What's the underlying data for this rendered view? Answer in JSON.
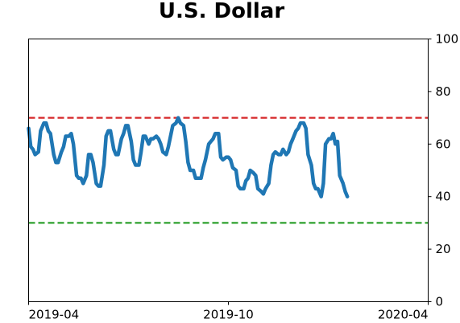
{
  "chart_data": {
    "type": "line",
    "title": "U.S. Dollar",
    "xlabel": "",
    "ylabel": "",
    "x_range": [
      "2019-04-01",
      "2020-04-01"
    ],
    "ylim": [
      0,
      100
    ],
    "x_ticks": [
      {
        "date": "2019-04-01",
        "label": "2019-04"
      },
      {
        "date": "2019-10-01",
        "label": "2019-10"
      },
      {
        "date": "2020-04-01",
        "label": "2020-04"
      }
    ],
    "y_ticks": [
      0,
      20,
      40,
      60,
      80,
      100
    ],
    "y_axis_side": "right",
    "grid": false,
    "reference_lines": [
      {
        "y": 70,
        "color": "#d62728",
        "style": "dashed"
      },
      {
        "y": 30,
        "color": "#2ca02c",
        "style": "dashed"
      }
    ],
    "series": [
      {
        "color": "#1f77b4",
        "points": [
          [
            "2019-04-01",
            66
          ],
          [
            "2019-04-03",
            59
          ],
          [
            "2019-04-05",
            58
          ],
          [
            "2019-04-07",
            56
          ],
          [
            "2019-04-10",
            57
          ],
          [
            "2019-04-12",
            65
          ],
          [
            "2019-04-15",
            68
          ],
          [
            "2019-04-17",
            68
          ],
          [
            "2019-04-19",
            65
          ],
          [
            "2019-04-21",
            64
          ],
          [
            "2019-04-24",
            56
          ],
          [
            "2019-04-26",
            53
          ],
          [
            "2019-04-28",
            53
          ],
          [
            "2019-05-01",
            57
          ],
          [
            "2019-05-03",
            59
          ],
          [
            "2019-05-05",
            63
          ],
          [
            "2019-05-08",
            63
          ],
          [
            "2019-05-10",
            64
          ],
          [
            "2019-05-12",
            60
          ],
          [
            "2019-05-15",
            48
          ],
          [
            "2019-05-17",
            47
          ],
          [
            "2019-05-19",
            47
          ],
          [
            "2019-05-21",
            45
          ],
          [
            "2019-05-24",
            48
          ],
          [
            "2019-05-26",
            56
          ],
          [
            "2019-05-28",
            56
          ],
          [
            "2019-05-30",
            53
          ],
          [
            "2019-06-02",
            45
          ],
          [
            "2019-06-04",
            44
          ],
          [
            "2019-06-06",
            44
          ],
          [
            "2019-06-09",
            52
          ],
          [
            "2019-06-11",
            63
          ],
          [
            "2019-06-13",
            65
          ],
          [
            "2019-06-15",
            65
          ],
          [
            "2019-06-18",
            58
          ],
          [
            "2019-06-20",
            56
          ],
          [
            "2019-06-22",
            56
          ],
          [
            "2019-06-25",
            62
          ],
          [
            "2019-06-27",
            64
          ],
          [
            "2019-06-29",
            67
          ],
          [
            "2019-07-01",
            67
          ],
          [
            "2019-07-04",
            61
          ],
          [
            "2019-07-06",
            54
          ],
          [
            "2019-07-08",
            52
          ],
          [
            "2019-07-11",
            52
          ],
          [
            "2019-07-13",
            57
          ],
          [
            "2019-07-15",
            63
          ],
          [
            "2019-07-17",
            63
          ],
          [
            "2019-07-20",
            60
          ],
          [
            "2019-07-22",
            62
          ],
          [
            "2019-07-24",
            62
          ],
          [
            "2019-07-27",
            63
          ],
          [
            "2019-07-29",
            62
          ],
          [
            "2019-07-31",
            60
          ],
          [
            "2019-08-02",
            57
          ],
          [
            "2019-08-05",
            56
          ],
          [
            "2019-08-07",
            59
          ],
          [
            "2019-08-09",
            63
          ],
          [
            "2019-08-11",
            67
          ],
          [
            "2019-08-14",
            68
          ],
          [
            "2019-08-16",
            70
          ],
          [
            "2019-08-18",
            68
          ],
          [
            "2019-08-21",
            67
          ],
          [
            "2019-08-23",
            61
          ],
          [
            "2019-08-25",
            53
          ],
          [
            "2019-08-27",
            50
          ],
          [
            "2019-08-30",
            50
          ],
          [
            "2019-09-01",
            47
          ],
          [
            "2019-09-03",
            47
          ],
          [
            "2019-09-06",
            47
          ],
          [
            "2019-09-08",
            51
          ],
          [
            "2019-09-10",
            54
          ],
          [
            "2019-09-13",
            60
          ],
          [
            "2019-09-15",
            61
          ],
          [
            "2019-09-17",
            62
          ],
          [
            "2019-09-19",
            64
          ],
          [
            "2019-09-22",
            64
          ],
          [
            "2019-09-24",
            55
          ],
          [
            "2019-09-26",
            54
          ],
          [
            "2019-09-29",
            55
          ],
          [
            "2019-10-01",
            55
          ],
          [
            "2019-10-03",
            54
          ],
          [
            "2019-10-05",
            51
          ],
          [
            "2019-10-08",
            50
          ],
          [
            "2019-10-10",
            44
          ],
          [
            "2019-10-12",
            43
          ],
          [
            "2019-10-15",
            43
          ],
          [
            "2019-10-17",
            46
          ],
          [
            "2019-10-19",
            47
          ],
          [
            "2019-10-21",
            50
          ],
          [
            "2019-10-24",
            49
          ],
          [
            "2019-10-26",
            48
          ],
          [
            "2019-10-28",
            43
          ],
          [
            "2019-10-31",
            42
          ],
          [
            "2019-11-02",
            41
          ],
          [
            "2019-11-04",
            43
          ],
          [
            "2019-11-07",
            45
          ],
          [
            "2019-11-09",
            52
          ],
          [
            "2019-11-11",
            56
          ],
          [
            "2019-11-13",
            57
          ],
          [
            "2019-11-16",
            56
          ],
          [
            "2019-11-18",
            56
          ],
          [
            "2019-11-20",
            58
          ],
          [
            "2019-11-23",
            56
          ],
          [
            "2019-11-25",
            57
          ],
          [
            "2019-11-27",
            60
          ],
          [
            "2019-11-29",
            62
          ],
          [
            "2019-12-02",
            65
          ],
          [
            "2019-12-04",
            66
          ],
          [
            "2019-12-06",
            68
          ],
          [
            "2019-12-09",
            68
          ],
          [
            "2019-12-11",
            66
          ],
          [
            "2019-12-13",
            56
          ],
          [
            "2019-12-16",
            52
          ],
          [
            "2019-12-18",
            45
          ],
          [
            "2019-12-20",
            43
          ],
          [
            "2019-12-22",
            43
          ],
          [
            "2019-12-25",
            40
          ],
          [
            "2019-12-27",
            45
          ],
          [
            "2019-12-29",
            60
          ],
          [
            "2020-01-01",
            62
          ],
          [
            "2020-01-03",
            62
          ],
          [
            "2020-01-05",
            64
          ],
          [
            "2020-01-07",
            60
          ],
          [
            "2020-01-09",
            61
          ],
          [
            "2020-01-11",
            48
          ],
          [
            "2020-01-14",
            45
          ],
          [
            "2020-01-16",
            42
          ],
          [
            "2020-01-18",
            40
          ]
        ]
      }
    ]
  }
}
